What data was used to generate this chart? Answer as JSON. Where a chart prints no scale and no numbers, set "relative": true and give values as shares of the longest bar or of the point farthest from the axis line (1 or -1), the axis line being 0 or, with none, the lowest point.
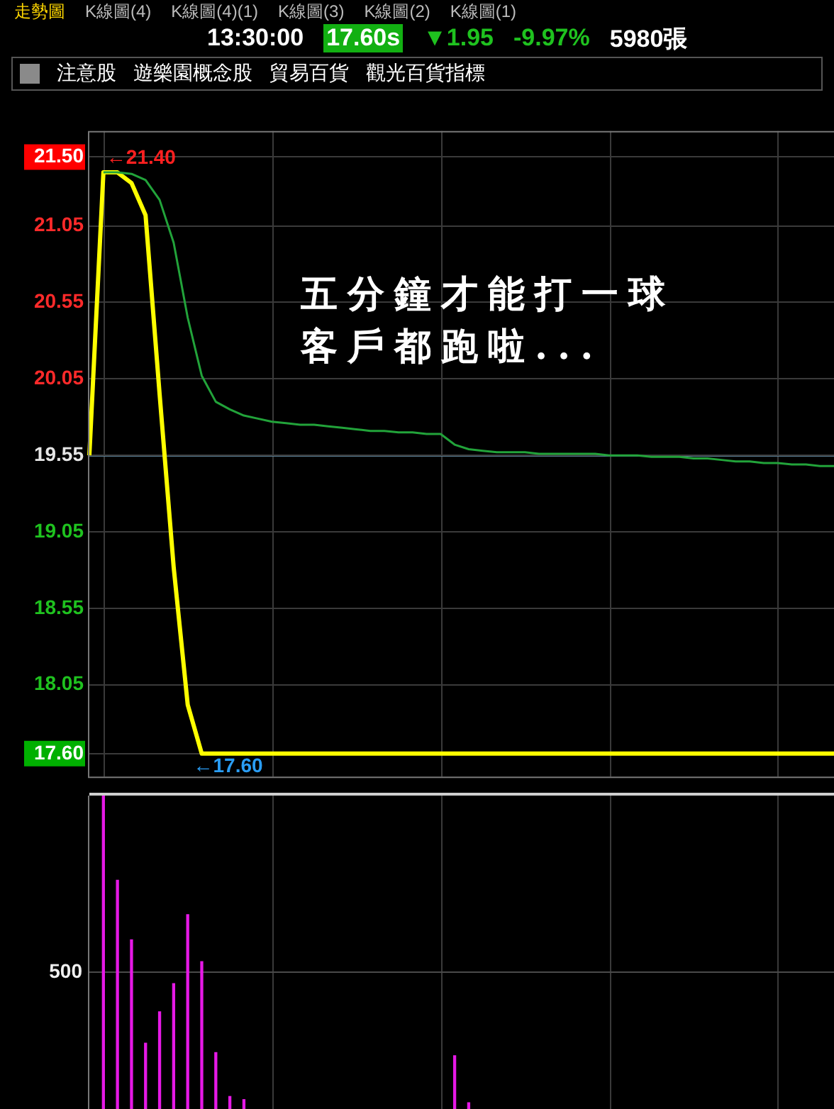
{
  "chart_data": [
    {
      "type": "other",
      "title": "13:30:00 17.60s ▼1.95 -9.97% 5980張",
      "subtitle": "注意股 遊樂園概念股 貿易百貨 觀光百貨指標",
      "annotations": [
        "走勢圖",
        "K線圖(4)",
        "K線圖(4)(1)",
        "K線圖(3)",
        "K線圖(2)",
        "K線圖(1)"
      ]
    },
    {
      "type": "line",
      "categories": [
        null,
        null,
        null,
        null,
        null,
        null,
        null,
        null,
        null,
        null,
        null,
        null,
        null,
        null,
        null,
        null,
        null,
        null,
        null,
        null,
        null,
        null,
        null,
        null,
        null,
        null,
        null,
        null,
        null,
        null,
        null,
        null,
        null,
        null,
        null,
        null,
        null,
        null,
        null,
        null,
        null,
        null,
        null,
        null,
        null,
        null,
        null,
        null,
        null,
        null,
        null,
        null,
        null,
        null
      ],
      "series": [
        {
          "color": "#ffff00",
          "values": [
            19.55,
            21.4,
            21.4,
            21.33,
            21.12,
            19.95,
            18.82,
            17.92,
            17.6,
            17.6,
            17.6,
            17.6,
            17.6,
            17.6,
            17.6,
            17.6,
            17.6,
            17.6,
            17.6,
            17.6,
            17.6,
            17.6,
            17.6,
            17.6,
            17.6,
            17.6,
            17.6,
            17.6,
            17.6,
            17.6,
            17.6,
            17.6,
            17.6,
            17.6,
            17.6,
            17.6,
            17.6,
            17.6,
            17.6,
            17.6,
            17.6,
            17.6,
            17.6,
            17.6,
            17.6,
            17.6,
            17.6,
            17.6,
            17.6,
            17.6,
            17.6,
            17.6,
            17.6,
            17.6
          ]
        },
        {
          "color": "#22a33a",
          "values": [
            null,
            21.4,
            21.4,
            21.39,
            21.35,
            21.22,
            20.94,
            20.45,
            20.07,
            19.9,
            19.85,
            19.81,
            19.79,
            19.77,
            19.76,
            19.75,
            19.75,
            19.74,
            19.73,
            19.72,
            19.71,
            19.71,
            19.7,
            19.7,
            19.69,
            19.69,
            19.62,
            19.59,
            19.58,
            19.57,
            19.57,
            19.57,
            19.56,
            19.56,
            19.56,
            19.56,
            19.56,
            19.55,
            19.55,
            19.55,
            19.54,
            19.54,
            19.54,
            19.53,
            19.53,
            19.52,
            19.51,
            19.51,
            19.5,
            19.5,
            19.49,
            19.49,
            19.48,
            19.48
          ]
        }
      ],
      "ylim": [
        17.45,
        21.67
      ],
      "yticks": [
        {
          "value": 17.6,
          "label": "17.60"
        },
        18.05,
        18.55,
        19.05,
        19.55,
        20.05,
        20.55,
        21.05,
        {
          "value": 21.5,
          "label": "21.50"
        }
      ],
      "ref_lines": [
        {
          "axis": "y",
          "value": 19.55,
          "color": "#5a7f94"
        }
      ],
      "grid": true,
      "annotations": [
        "五分鐘才能打一球",
        "客戶都跑啦...",
        {
          "text": "←21.40",
          "y": 21.4
        },
        {
          "text": "←17.60",
          "y": 17.6
        }
      ]
    },
    {
      "type": "bar",
      "categories": [
        null,
        null,
        null,
        null,
        null,
        null,
        null,
        null,
        null,
        null,
        null,
        null,
        null,
        null,
        null,
        null,
        null,
        null,
        null,
        null,
        null,
        null,
        null,
        null,
        null,
        null,
        null,
        null,
        null,
        null,
        null,
        null,
        null,
        null,
        null,
        null,
        null,
        null,
        null,
        null,
        null,
        null,
        null,
        null,
        null,
        null,
        null,
        null,
        null,
        null,
        null,
        null,
        null,
        null
      ],
      "values": [
        null,
        1,
        0.73,
        0.54,
        0.21,
        0.31,
        0.4,
        0.62,
        0.47,
        0.18,
        0.04,
        0.03,
        null,
        null,
        null,
        null,
        null,
        null,
        null,
        null,
        null,
        null,
        null,
        null,
        null,
        null,
        0.17,
        0.02,
        null,
        null,
        null,
        null,
        null,
        null,
        null,
        null,
        null,
        null,
        null,
        null,
        null,
        null,
        null,
        null,
        null,
        null,
        null,
        null,
        null,
        null,
        null,
        null,
        null,
        null
      ],
      "color": "#e619e6",
      "relative": true,
      "ref_lines": [
        {
          "axis": "y",
          "value": 0.44,
          "color": "#4a4a4a"
        }
      ],
      "annotations": [
        "500"
      ],
      "grid": "x"
    }
  ]
}
